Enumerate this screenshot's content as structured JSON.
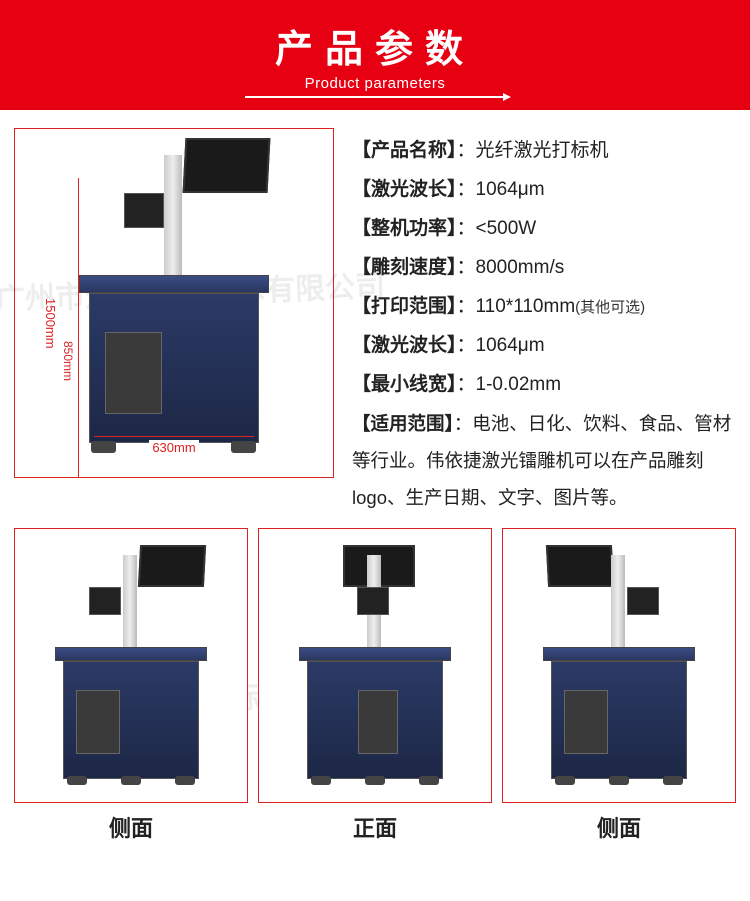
{
  "header": {
    "title_cn": "产品参数",
    "title_en": "Product parameters",
    "bg_color": "#e60012",
    "text_color": "#ffffff"
  },
  "main_image": {
    "dim_width": "630mm",
    "dim_height_full": "1500mm",
    "dim_height_cabinet": "850mm",
    "border_color": "#d22",
    "dim_color": "#d22"
  },
  "specs": [
    {
      "key": "【产品名称】",
      "val": "：光纤激光打标机"
    },
    {
      "key": "【激光波长】",
      "val": "：1064μm"
    },
    {
      "key": "【整机功率】",
      "val": "：<500W"
    },
    {
      "key": "【雕刻速度】",
      "val": "：8000mm/s"
    },
    {
      "key": "【打印范围】",
      "val": "：110*110mm",
      "ext": "(其他可选)"
    },
    {
      "key": "【激光波长】",
      "val": "：1064μm"
    },
    {
      "key": "【最小线宽】",
      "val": "：1-0.02mm"
    }
  ],
  "scope": {
    "key": "【适用范围】",
    "text": "：电池、日化、饮料、食品、管材等行业。伟依捷激光镭雕机可以在产品雕刻logo、生产日期、文字、图片等。"
  },
  "views": [
    {
      "label": "侧面"
    },
    {
      "label": "正面"
    },
    {
      "label": "侧面"
    }
  ],
  "watermark": "广州市通谊标识技术有限公司",
  "colors": {
    "cabinet": "#2b3a66",
    "monitor": "#1a1a1a",
    "pillar": "#dddddd"
  }
}
